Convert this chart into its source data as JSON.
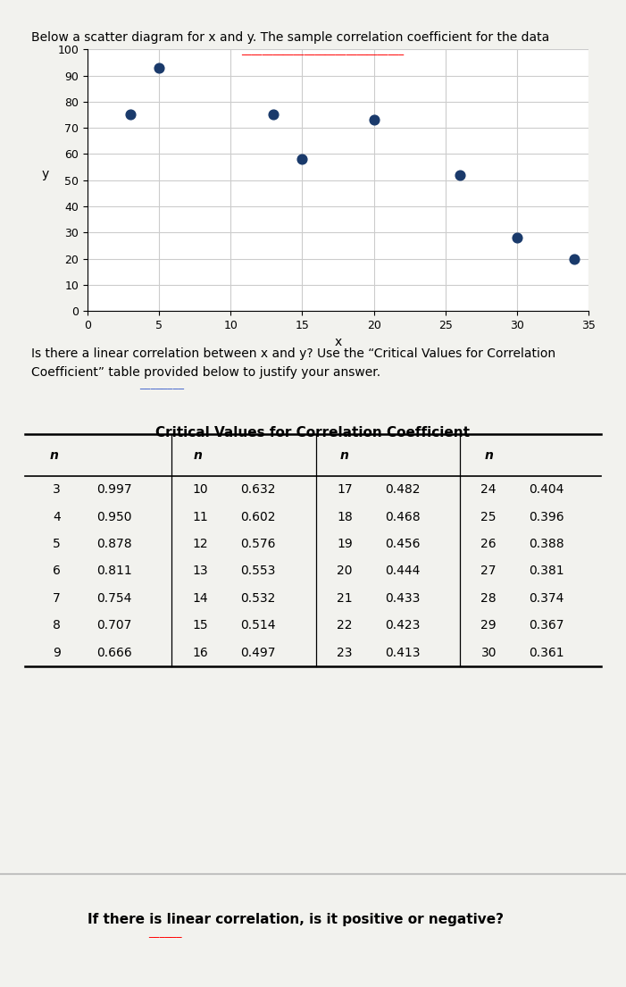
{
  "scatter_x": [
    3,
    5,
    13,
    15,
    20,
    26,
    30,
    34
  ],
  "scatter_y": [
    75,
    93,
    75,
    58,
    73,
    52,
    28,
    20
  ],
  "scatter_color": "#1a3a6b",
  "scatter_size": 60,
  "xlim": [
    0,
    35
  ],
  "ylim": [
    0,
    100
  ],
  "xticks": [
    0,
    5,
    10,
    15,
    20,
    25,
    30,
    35
  ],
  "yticks": [
    0,
    10,
    20,
    30,
    40,
    50,
    60,
    70,
    80,
    90,
    100
  ],
  "xlabel": "x",
  "ylabel": "y",
  "title_text": "Below a scatter diagram for x and y. The sample correlation coefficient for the data",
  "question1": "Is there a linear correlation between x and y? Use the “Critical Values for Correlation\nCoefficient” table provided below to justify your answer.",
  "question2": "If there is linear correlation, is it positive or negative?",
  "table_title": "Critical Values for Correlation Coefficient",
  "table_col1_n": [
    3,
    4,
    5,
    6,
    7,
    8,
    9
  ],
  "table_col1_v": [
    0.997,
    0.95,
    0.878,
    0.811,
    0.754,
    0.707,
    0.666
  ],
  "table_col2_n": [
    10,
    11,
    12,
    13,
    14,
    15,
    16
  ],
  "table_col2_v": [
    0.632,
    0.602,
    0.576,
    0.553,
    0.532,
    0.514,
    0.497
  ],
  "table_col3_n": [
    17,
    18,
    19,
    20,
    21,
    22,
    23
  ],
  "table_col3_v": [
    0.482,
    0.468,
    0.456,
    0.444,
    0.433,
    0.423,
    0.413
  ],
  "table_col4_n": [
    24,
    25,
    26,
    27,
    28,
    29,
    30
  ],
  "table_col4_v": [
    0.404,
    0.396,
    0.388,
    0.381,
    0.374,
    0.367,
    0.361
  ],
  "bg_color": "#f2f2ee",
  "plot_bg_color": "#ffffff",
  "grid_color": "#cccccc"
}
